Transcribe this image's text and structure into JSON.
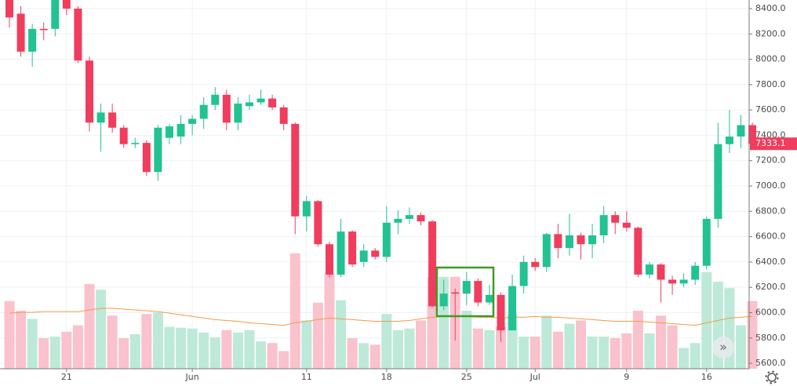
{
  "chart_data": {
    "type": "candlestick",
    "categories": [
      null,
      null,
      null,
      null,
      null,
      "21",
      null,
      null,
      null,
      null,
      null,
      null,
      null,
      null,
      null,
      null,
      "Jun",
      null,
      null,
      null,
      null,
      null,
      null,
      null,
      null,
      null,
      "11",
      null,
      null,
      null,
      null,
      null,
      null,
      "18",
      null,
      null,
      null,
      null,
      null,
      null,
      "25",
      null,
      null,
      null,
      null,
      null,
      "Jul",
      null,
      null,
      null,
      null,
      null,
      null,
      null,
      "9",
      null,
      null,
      null,
      null,
      null,
      null,
      "16",
      null,
      null,
      null,
      null
    ],
    "open": [
      8470,
      8360,
      8060,
      8240,
      8240,
      8470,
      8400,
      7990,
      7500,
      7580,
      7460,
      7330,
      7340,
      7110,
      7380,
      7390,
      7490,
      7530,
      7640,
      7720,
      7500,
      7630,
      7660,
      7690,
      7620,
      7490,
      6760,
      6880,
      6540,
      6300,
      6640,
      6400,
      6490,
      6440,
      6710,
      6740,
      6770,
      6720,
      6050,
      6160,
      6150,
      6250,
      6080,
      6140,
      5860,
      6210,
      6400,
      6360,
      6620,
      6510,
      6610,
      6540,
      6610,
      6770,
      6710,
      6670,
      6300,
      6380,
      6260,
      6230,
      6260,
      6370,
      6740,
      7330,
      7390,
      7480
    ],
    "high": [
      8500,
      8420,
      8280,
      8290,
      8500,
      8500,
      8420,
      8020,
      7650,
      7650,
      7480,
      7380,
      7360,
      7480,
      7490,
      7560,
      7560,
      7700,
      7780,
      7760,
      7700,
      7720,
      7760,
      7720,
      7640,
      7500,
      6920,
      6890,
      6560,
      6740,
      6650,
      6540,
      6510,
      6840,
      6810,
      6830,
      6790,
      6730,
      6260,
      6190,
      6320,
      6270,
      6220,
      6160,
      6300,
      6450,
      6430,
      6630,
      6700,
      6780,
      6630,
      6700,
      6840,
      6800,
      6800,
      6680,
      6400,
      6390,
      6290,
      6310,
      6400,
      6760,
      7500,
      7600,
      7560,
      7500
    ],
    "low": [
      8250,
      8020,
      7940,
      8150,
      8180,
      8350,
      7970,
      7430,
      7270,
      7420,
      7300,
      7300,
      7080,
      7040,
      7330,
      7330,
      7400,
      7450,
      7600,
      7440,
      7440,
      7600,
      7640,
      7600,
      7440,
      6620,
      6640,
      6520,
      6280,
      6280,
      6360,
      6360,
      6420,
      6400,
      6620,
      6700,
      6690,
      6040,
      6020,
      5780,
      6060,
      6050,
      6060,
      5770,
      5860,
      6150,
      6330,
      6320,
      6430,
      6450,
      6420,
      6430,
      6550,
      6620,
      6640,
      6280,
      6270,
      6080,
      6140,
      6200,
      6220,
      6340,
      6670,
      7260,
      7300,
      7300
    ],
    "close": [
      8330,
      8060,
      8240,
      8230,
      8480,
      8400,
      7990,
      7500,
      7580,
      7460,
      7330,
      7340,
      7110,
      7460,
      7470,
      7490,
      7530,
      7640,
      7720,
      7500,
      7650,
      7660,
      7690,
      7620,
      7490,
      6760,
      6880,
      6540,
      6300,
      6640,
      6380,
      6490,
      6440,
      6710,
      6740,
      6770,
      6720,
      6050,
      6150,
      6150,
      6250,
      6080,
      6140,
      5860,
      6210,
      6400,
      6360,
      6620,
      6510,
      6610,
      6540,
      6610,
      6770,
      6710,
      6670,
      6300,
      6380,
      6260,
      6230,
      6260,
      6370,
      6740,
      7330,
      7390,
      7480,
      7333.1
    ],
    "volume": [
      77,
      65,
      55,
      31,
      33,
      39,
      47,
      98,
      91,
      59,
      31,
      36,
      61,
      63,
      45,
      44,
      43,
      38,
      32,
      41,
      38,
      41,
      27,
      25,
      15,
      136,
      53,
      75,
      111,
      78,
      31,
      25,
      23,
      61,
      41,
      43,
      53,
      107,
      107,
      107,
      65,
      43,
      41,
      45,
      61,
      33,
      33,
      59,
      39,
      49,
      53,
      33,
      33,
      31,
      37,
      65,
      37,
      59,
      47,
      19,
      25,
      113,
      101,
      93,
      47,
      77
    ],
    "volume_ma": [
      62,
      63,
      63,
      64,
      64,
      64,
      64,
      66,
      68,
      68,
      67,
      66,
      65,
      64,
      62,
      60,
      58,
      56,
      54,
      53,
      52,
      50,
      49,
      48,
      47,
      50,
      52,
      54,
      56,
      55,
      54,
      53,
      52,
      52,
      52,
      53,
      55,
      57,
      58,
      58,
      58,
      57,
      57,
      56,
      57,
      57,
      58,
      57,
      57,
      56,
      55,
      54,
      53,
      52,
      52,
      52,
      51,
      50,
      49,
      48,
      47,
      50,
      53,
      56,
      57,
      58
    ],
    "up_color": "#22c292",
    "down_color": "#f03d5d",
    "up_volume_color": "#bde9d8",
    "down_volume_color": "#f9c2cd",
    "ma_color": "#f59a4a",
    "ylim": [
      5557,
      8468
    ],
    "yticks": [
      {
        "value": 5600,
        "label": "5600.0"
      },
      {
        "value": 5800,
        "label": "5800.0"
      },
      {
        "value": 6000,
        "label": "6000.0"
      },
      {
        "value": 6200,
        "label": "6200.0"
      },
      {
        "value": 6400,
        "label": "6400.0"
      },
      {
        "value": 6600,
        "label": "6600.0"
      },
      {
        "value": 6800,
        "label": "6800.0"
      },
      {
        "value": 7000,
        "label": "7000.0"
      },
      {
        "value": 7200,
        "label": "7200.0"
      },
      {
        "value": 7400,
        "label": "7400.0"
      },
      {
        "value": 7600,
        "label": "7600.0"
      },
      {
        "value": 7800,
        "label": "7800.0"
      },
      {
        "value": 8000,
        "label": "8000.0"
      },
      {
        "value": 8200,
        "label": "8200.0"
      },
      {
        "value": 8400,
        "label": "8400.0"
      }
    ],
    "last_price": 7333.1,
    "grid": true
  }
}
